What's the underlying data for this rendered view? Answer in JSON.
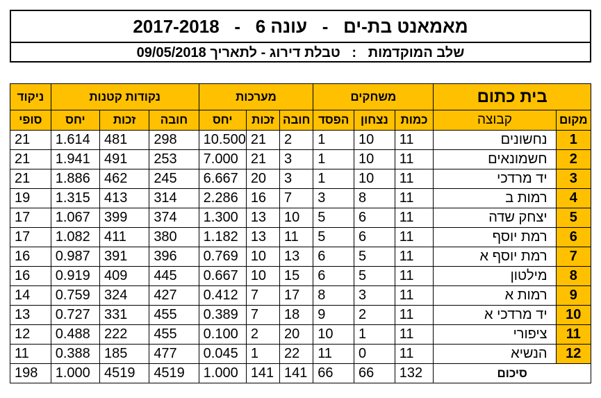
{
  "header": {
    "title": "מאמאנט בת-ים   -   עונה 6   -   2017-2018",
    "subtitle": "שלב המוקדמות   :   טבלת דירוג - לתאריך 09/05/2018"
  },
  "table": {
    "group_label": "בית כתום",
    "groups": {
      "matches": "משחקים",
      "sets": "מערכות",
      "points": "נקודות קטנות",
      "final": "ניקוד"
    },
    "columns": {
      "rank": "מקום",
      "team": "קבוצה",
      "played": "כמות",
      "won": "נצחון",
      "lost": "הפסד",
      "sets_lost": "חובה",
      "sets_won": "זכות",
      "sets_ratio": "יחס",
      "pts_lost": "חובה",
      "pts_won": "זכות",
      "pts_ratio": "יחס",
      "final": "סופי"
    },
    "rows": [
      {
        "rank": "1",
        "team": "נחשונים",
        "played": "11",
        "won": "10",
        "lost": "1",
        "sets_lost": "2",
        "sets_won": "21",
        "sets_ratio": "10.500",
        "pts_lost": "298",
        "pts_won": "481",
        "pts_ratio": "1.614",
        "final": "21"
      },
      {
        "rank": "2",
        "team": "חשמונאים",
        "played": "11",
        "won": "10",
        "lost": "1",
        "sets_lost": "3",
        "sets_won": "21",
        "sets_ratio": "7.000",
        "pts_lost": "253",
        "pts_won": "491",
        "pts_ratio": "1.941",
        "final": "21"
      },
      {
        "rank": "3",
        "team": "יד מרדכי",
        "played": "11",
        "won": "10",
        "lost": "1",
        "sets_lost": "3",
        "sets_won": "20",
        "sets_ratio": "6.667",
        "pts_lost": "245",
        "pts_won": "462",
        "pts_ratio": "1.886",
        "final": "21"
      },
      {
        "rank": "4",
        "team": "רמות ב",
        "played": "11",
        "won": "8",
        "lost": "3",
        "sets_lost": "7",
        "sets_won": "16",
        "sets_ratio": "2.286",
        "pts_lost": "314",
        "pts_won": "413",
        "pts_ratio": "1.315",
        "final": "19"
      },
      {
        "rank": "5",
        "team": "יצחק שדה",
        "played": "11",
        "won": "6",
        "lost": "5",
        "sets_lost": "10",
        "sets_won": "13",
        "sets_ratio": "1.300",
        "pts_lost": "374",
        "pts_won": "399",
        "pts_ratio": "1.067",
        "final": "17"
      },
      {
        "rank": "6",
        "team": "רמת יוסף",
        "played": "11",
        "won": "6",
        "lost": "5",
        "sets_lost": "11",
        "sets_won": "13",
        "sets_ratio": "1.182",
        "pts_lost": "380",
        "pts_won": "411",
        "pts_ratio": "1.082",
        "final": "17"
      },
      {
        "rank": "7",
        "team": "רמת יוסף א",
        "played": "11",
        "won": "5",
        "lost": "6",
        "sets_lost": "13",
        "sets_won": "10",
        "sets_ratio": "0.769",
        "pts_lost": "396",
        "pts_won": "391",
        "pts_ratio": "0.987",
        "final": "16"
      },
      {
        "rank": "8",
        "team": "מילטון",
        "played": "11",
        "won": "5",
        "lost": "6",
        "sets_lost": "15",
        "sets_won": "10",
        "sets_ratio": "0.667",
        "pts_lost": "445",
        "pts_won": "409",
        "pts_ratio": "0.919",
        "final": "16"
      },
      {
        "rank": "9",
        "team": "רמות א",
        "played": "11",
        "won": "3",
        "lost": "8",
        "sets_lost": "17",
        "sets_won": "7",
        "sets_ratio": "0.412",
        "pts_lost": "427",
        "pts_won": "324",
        "pts_ratio": "0.759",
        "final": "14"
      },
      {
        "rank": "10",
        "team": "יד מרדכי א",
        "played": "11",
        "won": "2",
        "lost": "9",
        "sets_lost": "18",
        "sets_won": "7",
        "sets_ratio": "0.389",
        "pts_lost": "455",
        "pts_won": "331",
        "pts_ratio": "0.727",
        "final": "13"
      },
      {
        "rank": "11",
        "team": "ציפורי",
        "played": "11",
        "won": "1",
        "lost": "10",
        "sets_lost": "20",
        "sets_won": "2",
        "sets_ratio": "0.100",
        "pts_lost": "455",
        "pts_won": "222",
        "pts_ratio": "0.488",
        "final": "12"
      },
      {
        "rank": "12",
        "team": "הנשיא",
        "played": "11",
        "won": "0",
        "lost": "11",
        "sets_lost": "22",
        "sets_won": "1",
        "sets_ratio": "0.045",
        "pts_lost": "477",
        "pts_won": "185",
        "pts_ratio": "0.388",
        "final": "11"
      }
    ],
    "summary": {
      "label": "סיכום",
      "played": "132",
      "won": "66",
      "lost": "66",
      "sets_lost": "141",
      "sets_won": "141",
      "sets_ratio": "1.000",
      "pts_lost": "4519",
      "pts_won": "4519",
      "pts_ratio": "1.000",
      "final": "198"
    }
  }
}
